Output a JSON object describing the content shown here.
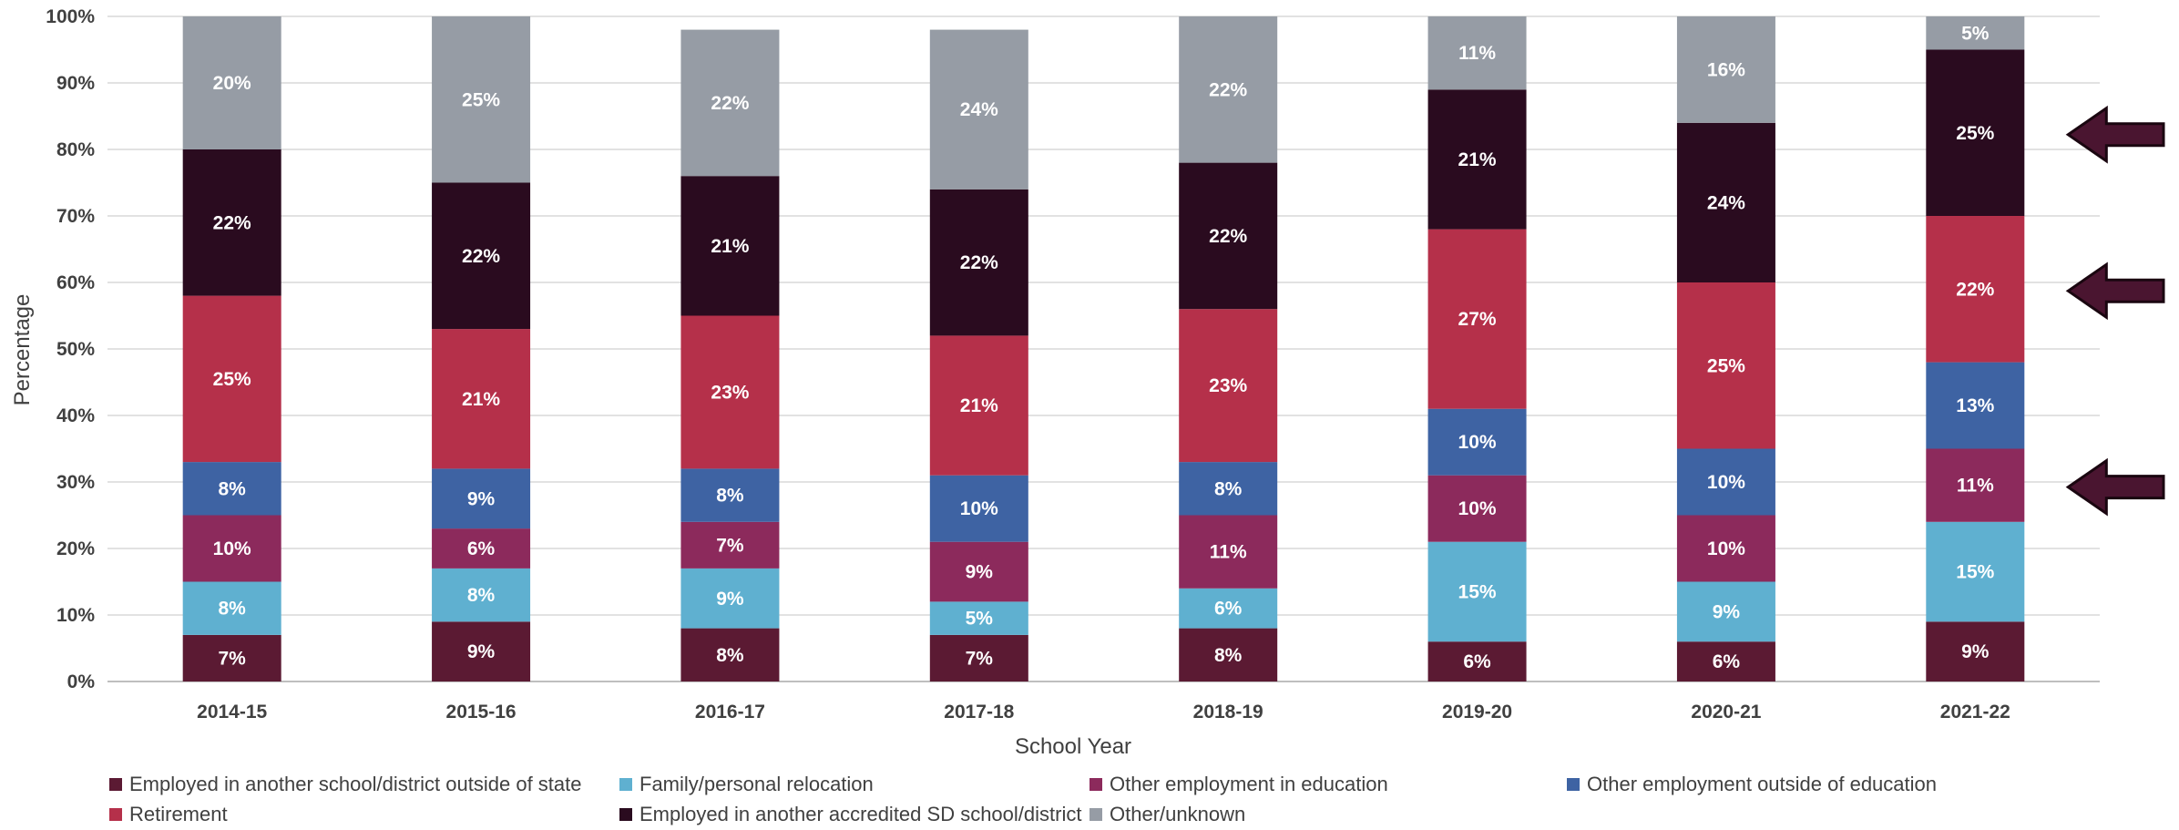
{
  "chart_data": {
    "type": "bar",
    "stacked": true,
    "xlabel": "School Year",
    "ylabel": "Percentage",
    "ylim": [
      0,
      100
    ],
    "yticks": [
      "0%",
      "10%",
      "20%",
      "30%",
      "40%",
      "50%",
      "60%",
      "70%",
      "80%",
      "90%",
      "100%"
    ],
    "grid": true,
    "legend_position": "bottom",
    "categories": [
      "2014-15",
      "2015-16",
      "2016-17",
      "2017-18",
      "2018-19",
      "2019-20",
      "2020-21",
      "2021-22"
    ],
    "series": [
      {
        "name": "Employed in another school/district outside of state",
        "color": "#5b1a33",
        "values": [
          7,
          9,
          8,
          7,
          8,
          6,
          6,
          9
        ]
      },
      {
        "name": "Family/personal relocation",
        "color": "#5fb0d0",
        "values": [
          8,
          8,
          9,
          5,
          6,
          15,
          9,
          15
        ]
      },
      {
        "name": "Other employment in education",
        "color": "#8c2a5c",
        "values": [
          10,
          6,
          7,
          9,
          11,
          10,
          10,
          11
        ]
      },
      {
        "name": "Other employment outside of education",
        "color": "#3e63a3",
        "values": [
          8,
          9,
          8,
          10,
          8,
          10,
          10,
          13
        ]
      },
      {
        "name": "Retirement",
        "color": "#b5304a",
        "values": [
          25,
          21,
          23,
          21,
          23,
          27,
          25,
          22
        ]
      },
      {
        "name": "Employed in another accredited SD school/district",
        "color": "#2a0b1f",
        "values": [
          22,
          22,
          21,
          22,
          22,
          21,
          24,
          25
        ]
      },
      {
        "name": "Other/unknown",
        "color": "#969ca5",
        "values": [
          20,
          25,
          22,
          24,
          22,
          11,
          16,
          5
        ]
      }
    ],
    "annotations": [
      {
        "type": "arrow",
        "points_to_category": "2021-22",
        "points_to_series": "Employed in another accredited SD school/district",
        "color": "#4a1530"
      },
      {
        "type": "arrow",
        "points_to_category": "2021-22",
        "points_to_series": "Retirement",
        "color": "#4a1530"
      },
      {
        "type": "arrow",
        "points_to_category": "2021-22",
        "points_to_series": "Other employment in education",
        "color": "#4a1530"
      }
    ]
  }
}
